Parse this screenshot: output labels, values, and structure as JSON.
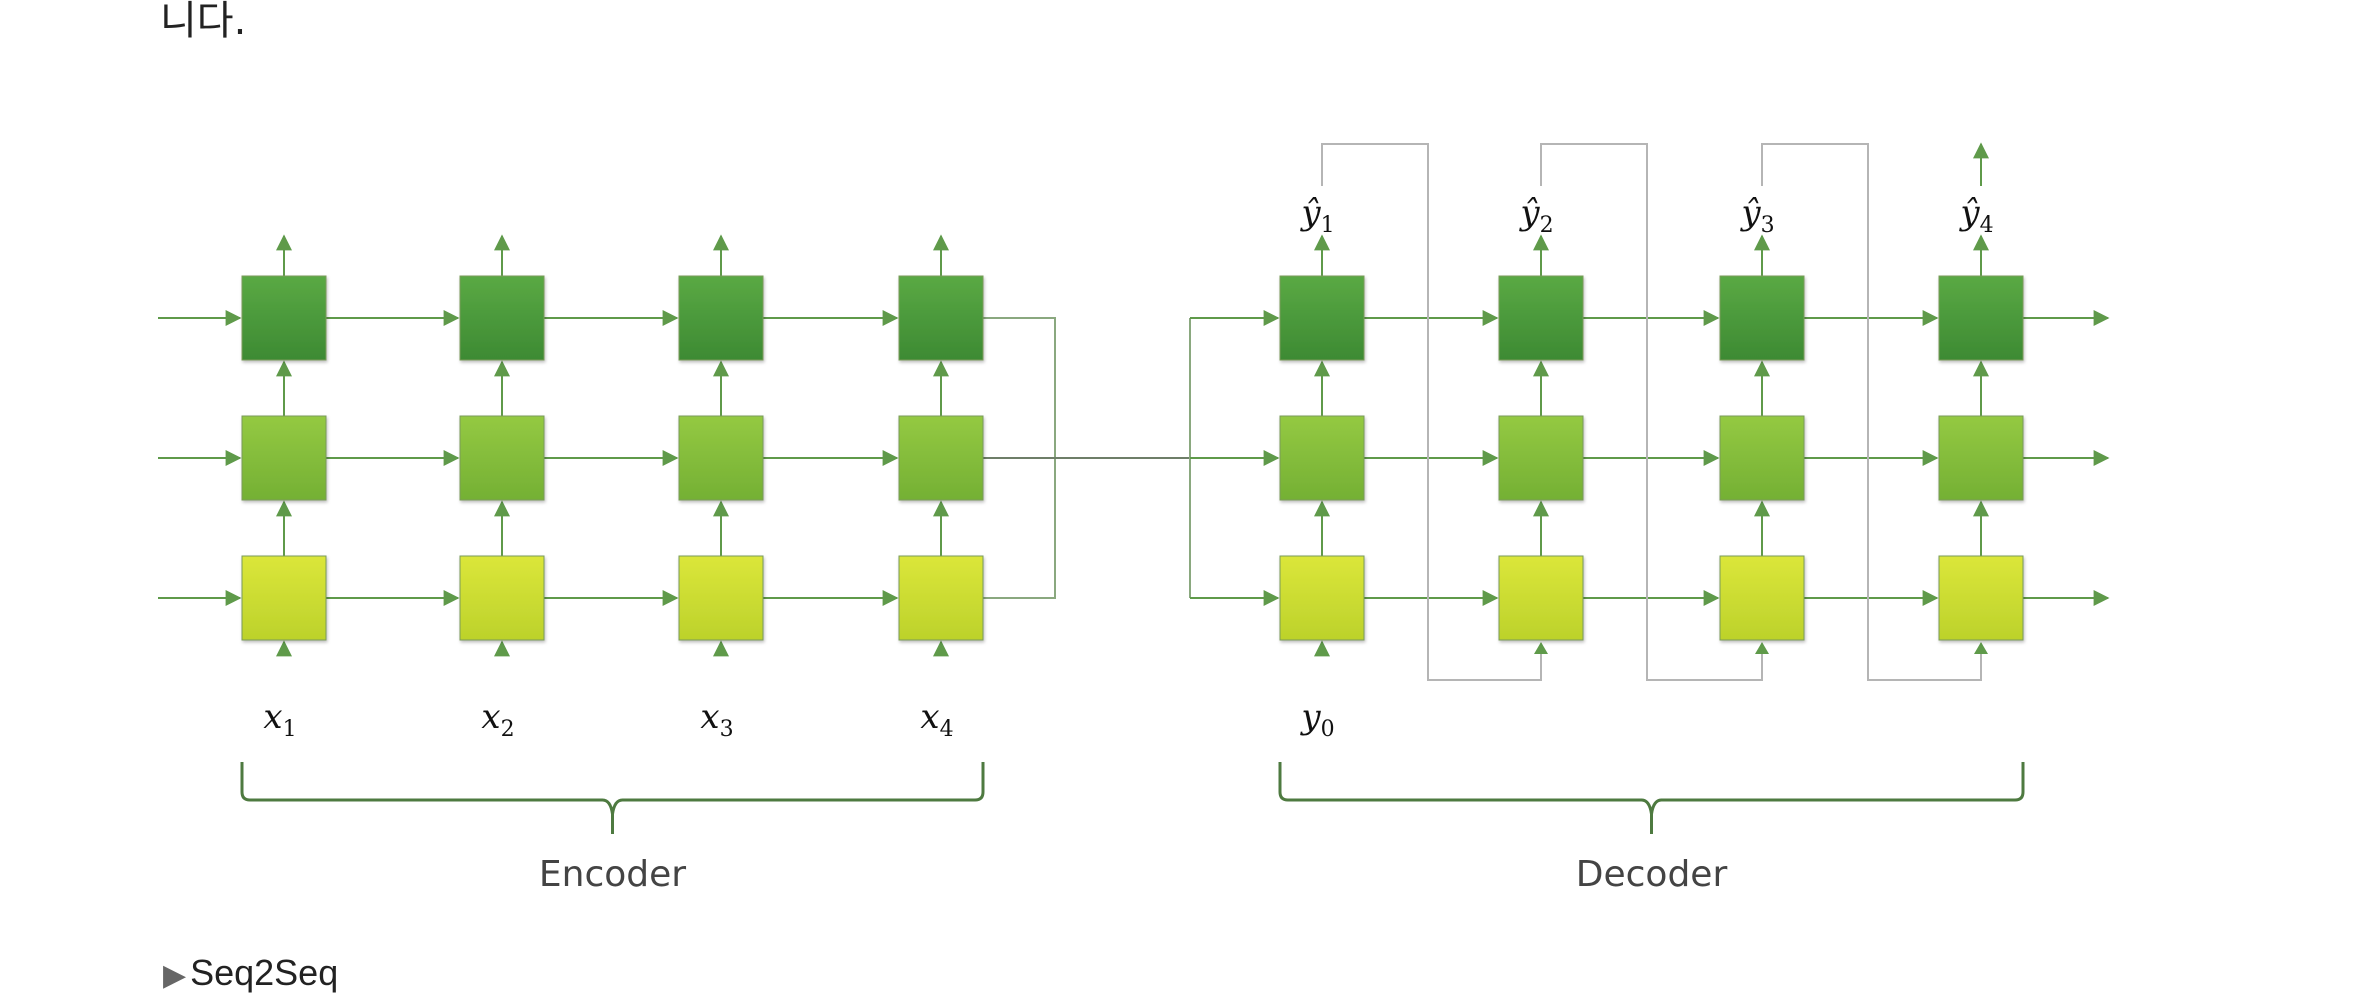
{
  "fragment_text": "니다.",
  "caption": {
    "marker": "▶",
    "text": "Seq2Seq"
  },
  "encoder": {
    "label": "Encoder",
    "inputs": [
      {
        "base": "x",
        "sub": "1"
      },
      {
        "base": "x",
        "sub": "2"
      },
      {
        "base": "x",
        "sub": "3"
      },
      {
        "base": "x",
        "sub": "4"
      }
    ]
  },
  "decoder": {
    "label": "Decoder",
    "input": {
      "base": "y",
      "sub": "0"
    },
    "outputs": [
      {
        "base": "ŷ",
        "sub": "1"
      },
      {
        "base": "ŷ",
        "sub": "2"
      },
      {
        "base": "ŷ",
        "sub": "3"
      },
      {
        "base": "ŷ",
        "sub": "4"
      }
    ]
  },
  "colors": {
    "layer_top": "#4a9a3a",
    "layer_mid": "#84bf3a",
    "layer_bottom": "#cede2f",
    "arrow_green": "#5f9a4a",
    "feedback_gray": "#b5b5b5",
    "brace": "#4e7a40"
  }
}
